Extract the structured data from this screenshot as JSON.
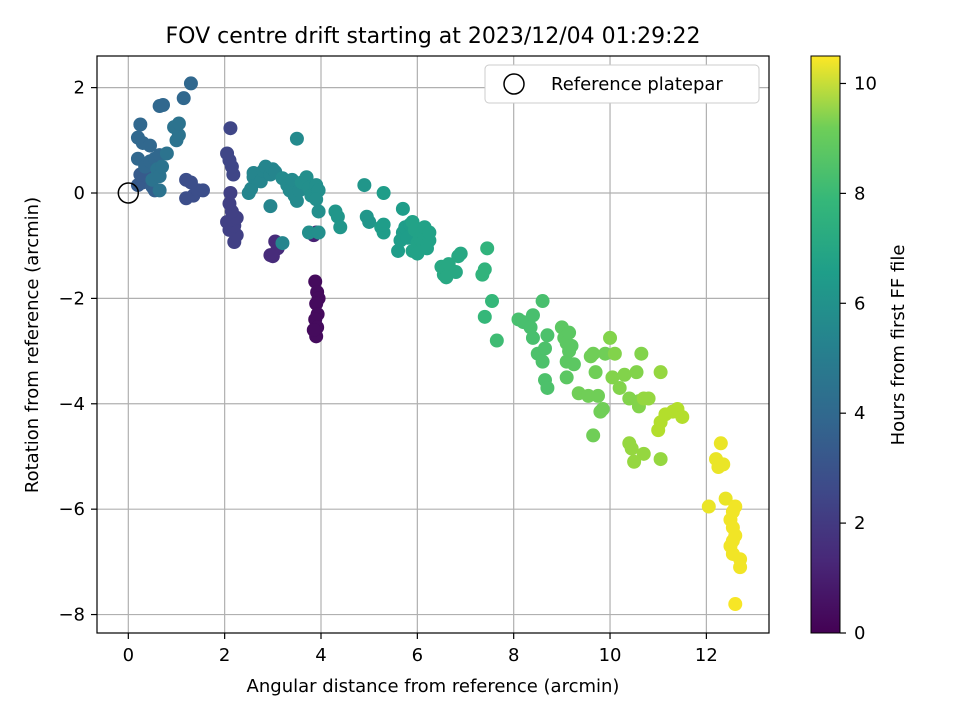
{
  "chart_data": {
    "type": "scatter",
    "title": "FOV centre drift starting at 2023/12/04 01:29:22",
    "xlabel": "Angular distance from reference (arcmin)",
    "ylabel": "Rotation from reference (arcmin)",
    "xlim": [
      -0.65,
      13.3
    ],
    "ylim": [
      -8.35,
      2.6
    ],
    "xticks": [
      0,
      2,
      4,
      6,
      8,
      10,
      12
    ],
    "xtick_labels": [
      "0",
      "2",
      "4",
      "6",
      "8",
      "10",
      "12"
    ],
    "yticks": [
      2,
      0,
      -2,
      -4,
      -6,
      -8
    ],
    "ytick_labels": [
      "2",
      "0",
      "−2",
      "−4",
      "−6",
      "−8"
    ],
    "grid": true,
    "legend": {
      "placement": "top-right",
      "entries": [
        "Reference platepar"
      ]
    },
    "reference_point": {
      "x": 0,
      "y": 0,
      "label": "Reference platepar"
    },
    "colorbar": {
      "label": "Hours from first FF file",
      "colormap": "viridis",
      "range": [
        0,
        10.5
      ],
      "ticks": [
        0,
        2,
        4,
        6,
        8,
        10
      ],
      "tick_labels": [
        "0",
        "2",
        "4",
        "6",
        "8",
        "10"
      ]
    },
    "points": [
      [
        3.88,
        -1.68,
        0.3
      ],
      [
        3.92,
        -1.88,
        0.3
      ],
      [
        3.95,
        -2.0,
        0.3
      ],
      [
        3.9,
        -2.1,
        0.3
      ],
      [
        3.93,
        -2.3,
        0.3
      ],
      [
        3.88,
        -2.4,
        0.3
      ],
      [
        3.92,
        -2.55,
        0.3
      ],
      [
        3.9,
        -2.72,
        0.3
      ],
      [
        3.85,
        -2.6,
        0.3
      ],
      [
        3.9,
        -0.75,
        1.0
      ],
      [
        3.85,
        -0.8,
        1.0
      ],
      [
        3.05,
        -0.92,
        1.3
      ],
      [
        3.1,
        -1.05,
        1.3
      ],
      [
        3.0,
        -1.2,
        1.3
      ],
      [
        2.95,
        -1.18,
        1.3
      ],
      [
        2.2,
        -0.93,
        2.0
      ],
      [
        2.25,
        -0.8,
        2.0
      ],
      [
        2.1,
        -0.7,
        2.0
      ],
      [
        2.2,
        -0.62,
        2.0
      ],
      [
        2.05,
        -0.55,
        2.0
      ],
      [
        2.15,
        -0.5,
        2.0
      ],
      [
        2.25,
        -0.47,
        2.0
      ],
      [
        2.15,
        -0.35,
        2.0
      ],
      [
        2.1,
        -0.2,
        2.0
      ],
      [
        2.12,
        0.0,
        2.0
      ],
      [
        2.18,
        0.35,
        2.2
      ],
      [
        2.15,
        0.5,
        2.2
      ],
      [
        2.1,
        0.62,
        2.2
      ],
      [
        2.05,
        0.75,
        2.2
      ],
      [
        2.12,
        1.23,
        2.2
      ],
      [
        1.35,
        -0.05,
        2.5
      ],
      [
        1.2,
        -0.1,
        2.5
      ],
      [
        1.45,
        0.05,
        2.5
      ],
      [
        1.55,
        0.05,
        2.5
      ],
      [
        1.3,
        0.2,
        2.5
      ],
      [
        1.2,
        0.25,
        2.5
      ],
      [
        0.2,
        0.15,
        3.0
      ],
      [
        0.3,
        0.2,
        3.0
      ],
      [
        0.4,
        0.3,
        3.0
      ],
      [
        0.25,
        0.35,
        3.0
      ],
      [
        0.6,
        0.35,
        3.0
      ],
      [
        0.5,
        0.12,
        3.2
      ],
      [
        0.55,
        0.05,
        3.2
      ],
      [
        0.2,
        0.65,
        3.5
      ],
      [
        0.35,
        0.5,
        3.5
      ],
      [
        0.45,
        0.6,
        3.5
      ],
      [
        0.55,
        0.65,
        3.5
      ],
      [
        0.65,
        0.72,
        3.5
      ],
      [
        0.2,
        1.05,
        3.5
      ],
      [
        0.3,
        0.95,
        3.5
      ],
      [
        0.45,
        0.9,
        3.5
      ],
      [
        0.25,
        1.3,
        3.5
      ],
      [
        0.65,
        1.65,
        3.5
      ],
      [
        0.72,
        1.67,
        3.5
      ],
      [
        1.15,
        1.8,
        3.5
      ],
      [
        1.3,
        2.08,
        3.5
      ],
      [
        0.6,
        0.45,
        4.0
      ],
      [
        0.5,
        0.25,
        4.0
      ],
      [
        0.65,
        0.32,
        4.0
      ],
      [
        0.7,
        0.5,
        4.0
      ],
      [
        0.8,
        0.75,
        4.0
      ],
      [
        0.65,
        0.05,
        4.0
      ],
      [
        1.0,
        1.0,
        4.0
      ],
      [
        1.05,
        1.1,
        4.0
      ],
      [
        0.95,
        1.25,
        4.0
      ],
      [
        1.05,
        1.32,
        4.0
      ],
      [
        2.5,
        0.0,
        4.8
      ],
      [
        2.55,
        0.08,
        4.8
      ],
      [
        2.6,
        0.3,
        4.8
      ],
      [
        2.6,
        0.38,
        4.8
      ],
      [
        2.75,
        0.22,
        4.8
      ],
      [
        2.8,
        0.42,
        4.8
      ],
      [
        2.85,
        0.5,
        4.8
      ],
      [
        2.95,
        0.35,
        4.8
      ],
      [
        3.0,
        0.45,
        4.8
      ],
      [
        3.05,
        0.4,
        4.8
      ],
      [
        2.95,
        -0.25,
        4.8
      ],
      [
        3.2,
        -0.95,
        4.8
      ],
      [
        3.2,
        0.28,
        5.0
      ],
      [
        3.3,
        0.15,
        5.0
      ],
      [
        3.35,
        0.05,
        5.0
      ],
      [
        3.4,
        0.25,
        5.0
      ],
      [
        3.45,
        -0.05,
        5.0
      ],
      [
        3.5,
        -0.15,
        5.0
      ],
      [
        3.55,
        0.05,
        5.0
      ],
      [
        3.5,
        1.03,
        5.0
      ],
      [
        3.6,
        0.2,
        5.2
      ],
      [
        3.7,
        0.3,
        5.2
      ],
      [
        3.75,
        0.1,
        5.2
      ],
      [
        3.8,
        -0.05,
        5.2
      ],
      [
        3.9,
        0.15,
        5.2
      ],
      [
        3.95,
        0.05,
        5.2
      ],
      [
        3.9,
        -0.12,
        5.2
      ],
      [
        3.95,
        -0.35,
        5.2
      ],
      [
        3.75,
        -0.75,
        5.2
      ],
      [
        3.95,
        -0.75,
        5.2
      ],
      [
        4.3,
        -0.35,
        5.5
      ],
      [
        4.35,
        -0.45,
        5.5
      ],
      [
        4.4,
        -0.65,
        5.5
      ],
      [
        4.9,
        0.15,
        5.5
      ],
      [
        4.95,
        -0.45,
        5.5
      ],
      [
        5.0,
        -0.55,
        5.5
      ],
      [
        5.25,
        -0.65,
        5.8
      ],
      [
        5.3,
        -0.75,
        5.8
      ],
      [
        5.3,
        0.0,
        5.8
      ],
      [
        5.3,
        -0.6,
        5.8
      ],
      [
        5.7,
        -0.3,
        5.8
      ],
      [
        5.6,
        -1.1,
        5.8
      ],
      [
        5.65,
        -0.9,
        5.8
      ],
      [
        5.7,
        -0.75,
        5.8
      ],
      [
        5.75,
        -0.65,
        5.8
      ],
      [
        5.8,
        -0.85,
        5.8
      ],
      [
        5.85,
        -0.6,
        5.8
      ],
      [
        5.9,
        -0.55,
        6.0
      ],
      [
        5.95,
        -0.7,
        6.0
      ],
      [
        6.0,
        -0.95,
        6.0
      ],
      [
        6.05,
        -0.85,
        6.0
      ],
      [
        6.1,
        -0.75,
        6.0
      ],
      [
        6.15,
        -0.65,
        6.0
      ],
      [
        5.9,
        -1.1,
        6.0
      ],
      [
        6.0,
        -1.15,
        6.0
      ],
      [
        6.2,
        -1.05,
        6.0
      ],
      [
        6.25,
        -0.9,
        6.0
      ],
      [
        6.25,
        -0.75,
        6.0
      ],
      [
        6.5,
        -1.4,
        6.3
      ],
      [
        6.55,
        -1.55,
        6.3
      ],
      [
        6.6,
        -1.45,
        6.3
      ],
      [
        6.65,
        -1.35,
        6.3
      ],
      [
        6.8,
        -1.5,
        6.3
      ],
      [
        6.85,
        -1.2,
        6.3
      ],
      [
        6.9,
        -1.15,
        6.3
      ],
      [
        6.6,
        -1.6,
        6.3
      ],
      [
        7.35,
        -1.55,
        6.8
      ],
      [
        7.4,
        -1.45,
        6.8
      ],
      [
        7.45,
        -1.05,
        6.8
      ],
      [
        7.4,
        -2.35,
        7.0
      ],
      [
        7.55,
        -2.05,
        7.0
      ],
      [
        7.65,
        -2.8,
        7.2
      ],
      [
        8.1,
        -2.4,
        7.4
      ],
      [
        8.2,
        -2.45,
        7.4
      ],
      [
        8.35,
        -2.55,
        7.4
      ],
      [
        8.4,
        -2.32,
        7.4
      ],
      [
        8.4,
        -2.75,
        7.4
      ],
      [
        8.6,
        -2.05,
        7.4
      ],
      [
        8.5,
        -3.05,
        7.5
      ],
      [
        8.6,
        -3.2,
        7.5
      ],
      [
        8.65,
        -2.95,
        7.5
      ],
      [
        8.7,
        -2.7,
        7.5
      ],
      [
        8.65,
        -3.55,
        7.5
      ],
      [
        8.7,
        -3.7,
        7.5
      ],
      [
        9.0,
        -2.55,
        7.8
      ],
      [
        9.05,
        -2.75,
        7.8
      ],
      [
        9.1,
        -2.85,
        7.8
      ],
      [
        9.15,
        -3.0,
        7.8
      ],
      [
        9.1,
        -3.2,
        7.8
      ],
      [
        9.15,
        -2.65,
        7.8
      ],
      [
        9.2,
        -2.9,
        7.8
      ],
      [
        9.25,
        -3.25,
        7.8
      ],
      [
        9.1,
        -3.5,
        7.8
      ],
      [
        9.35,
        -3.8,
        8.2
      ],
      [
        9.55,
        -3.85,
        8.2
      ],
      [
        9.6,
        -3.1,
        8.2
      ],
      [
        9.65,
        -3.05,
        8.2
      ],
      [
        9.7,
        -3.4,
        8.2
      ],
      [
        9.75,
        -3.85,
        8.2
      ],
      [
        9.8,
        -4.15,
        8.2
      ],
      [
        9.85,
        -4.1,
        8.2
      ],
      [
        9.65,
        -4.6,
        8.2
      ],
      [
        9.9,
        -3.05,
        8.2
      ],
      [
        10.0,
        -2.75,
        8.5
      ],
      [
        10.1,
        -3.05,
        8.5
      ],
      [
        10.05,
        -3.5,
        8.5
      ],
      [
        10.2,
        -3.7,
        8.5
      ],
      [
        10.3,
        -3.45,
        8.5
      ],
      [
        10.4,
        -3.9,
        8.5
      ],
      [
        10.55,
        -3.4,
        8.5
      ],
      [
        10.65,
        -3.05,
        8.5
      ],
      [
        10.6,
        -3.95,
        8.5
      ],
      [
        10.6,
        -4.05,
        8.5
      ],
      [
        10.4,
        -4.75,
        8.8
      ],
      [
        10.45,
        -4.85,
        8.8
      ],
      [
        10.5,
        -5.1,
        8.8
      ],
      [
        10.7,
        -3.9,
        8.8
      ],
      [
        10.8,
        -3.9,
        8.8
      ],
      [
        10.7,
        -4.95,
        8.8
      ],
      [
        11.05,
        -3.4,
        8.8
      ],
      [
        11.05,
        -5.05,
        8.8
      ],
      [
        11.0,
        -4.5,
        9.3
      ],
      [
        11.05,
        -4.35,
        9.3
      ],
      [
        11.15,
        -4.2,
        9.3
      ],
      [
        11.3,
        -4.15,
        9.3
      ],
      [
        11.4,
        -4.1,
        9.3
      ],
      [
        11.5,
        -4.25,
        9.3
      ],
      [
        12.05,
        -5.95,
        10.2
      ],
      [
        12.2,
        -5.05,
        10.2
      ],
      [
        12.25,
        -5.2,
        10.2
      ],
      [
        12.35,
        -5.15,
        10.2
      ],
      [
        12.3,
        -4.75,
        10.2
      ],
      [
        12.4,
        -5.8,
        10.2
      ],
      [
        12.5,
        -6.2,
        10.3
      ],
      [
        12.55,
        -6.05,
        10.3
      ],
      [
        12.6,
        -5.95,
        10.3
      ],
      [
        12.55,
        -6.35,
        10.3
      ],
      [
        12.6,
        -6.5,
        10.3
      ],
      [
        12.5,
        -6.7,
        10.3
      ],
      [
        12.55,
        -6.85,
        10.3
      ],
      [
        12.7,
        -6.95,
        10.3
      ],
      [
        12.7,
        -7.1,
        10.3
      ],
      [
        12.6,
        -7.8,
        10.4
      ],
      [
        12.55,
        -6.6,
        10.3
      ]
    ]
  }
}
